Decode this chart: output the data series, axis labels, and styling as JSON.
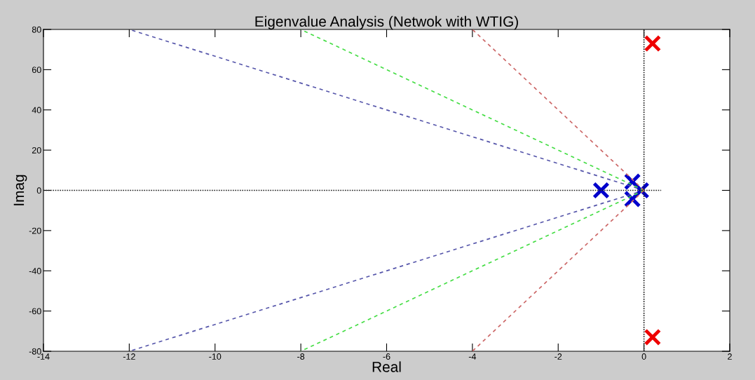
{
  "chart_data": {
    "type": "scatter",
    "title": "Eigenvalue Analysis (Netwok with WTIG)",
    "xlabel": "Real",
    "ylabel": "Imag",
    "xlim": [
      -14,
      2
    ],
    "ylim": [
      -80,
      80
    ],
    "xticks": [
      -14,
      -12,
      -10,
      -8,
      -6,
      -4,
      -2,
      0,
      2
    ],
    "yticks": [
      -80,
      -60,
      -40,
      -20,
      0,
      20,
      40,
      60,
      80
    ],
    "grid": false,
    "legend": false,
    "series": [
      {
        "type": "line",
        "color": "#5555aa",
        "line_style": "dashed",
        "marker": "none",
        "x": [
          0,
          -12
        ],
        "values": [
          0,
          80
        ]
      },
      {
        "type": "line",
        "color": "#5555aa",
        "line_style": "dashed",
        "marker": "none",
        "x": [
          0,
          -12
        ],
        "values": [
          0,
          -80
        ]
      },
      {
        "type": "line",
        "color": "#44dd44",
        "line_style": "dashed",
        "marker": "none",
        "x": [
          0,
          -8
        ],
        "values": [
          0,
          80
        ]
      },
      {
        "type": "line",
        "color": "#44dd44",
        "line_style": "dashed",
        "marker": "none",
        "x": [
          0,
          -8
        ],
        "values": [
          0,
          -80
        ]
      },
      {
        "type": "line",
        "color": "#cc6666",
        "line_style": "dashed",
        "marker": "none",
        "x": [
          0,
          -4
        ],
        "values": [
          0,
          80
        ]
      },
      {
        "type": "line",
        "color": "#cc6666",
        "line_style": "dashed",
        "marker": "none",
        "x": [
          0,
          -4
        ],
        "values": [
          0,
          -80
        ]
      },
      {
        "type": "line",
        "color": "#222222",
        "line_style": "dotted",
        "marker": "none",
        "x": [
          -14,
          0.4
        ],
        "values": [
          0,
          0
        ]
      },
      {
        "type": "line",
        "color": "#222222",
        "line_style": "dotted",
        "marker": "none",
        "x": [
          0,
          0
        ],
        "values": [
          -80,
          80
        ]
      },
      {
        "color": "#0000cc",
        "marker": "cross",
        "x": [
          -1.0,
          -0.27,
          -0.27,
          -0.07
        ],
        "values": [
          0,
          4.3,
          -4.3,
          0
        ]
      },
      {
        "color": "#ee0000",
        "marker": "cross",
        "x": [
          0.2,
          0.2
        ],
        "values": [
          73,
          -73
        ]
      }
    ]
  }
}
